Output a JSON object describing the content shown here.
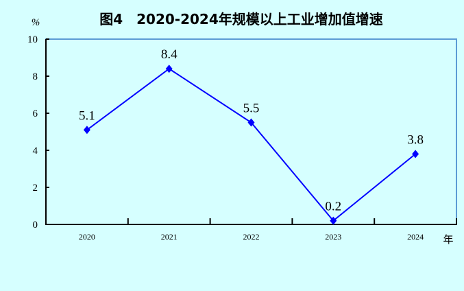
{
  "chart_data": {
    "type": "line",
    "title": "图4　2020-2024年规模以上工业增加值增速",
    "ylabel": "%",
    "xlabel": "年",
    "categories": [
      "2020",
      "2021",
      "2022",
      "2023",
      "2024"
    ],
    "series": [
      {
        "values": [
          5.1,
          8.4,
          5.5,
          0.2,
          3.8
        ],
        "color": "#0000ff"
      }
    ],
    "data_labels": [
      "5.1",
      "8.4",
      "5.5",
      "0.2",
      "3.8"
    ],
    "ylim": [
      0,
      10
    ],
    "yticks": [
      "0",
      "2",
      "4",
      "6",
      "8",
      "10"
    ],
    "grid": false,
    "legend": "none",
    "background": "#d6ffff",
    "frame_color": "#5b9bd5"
  }
}
